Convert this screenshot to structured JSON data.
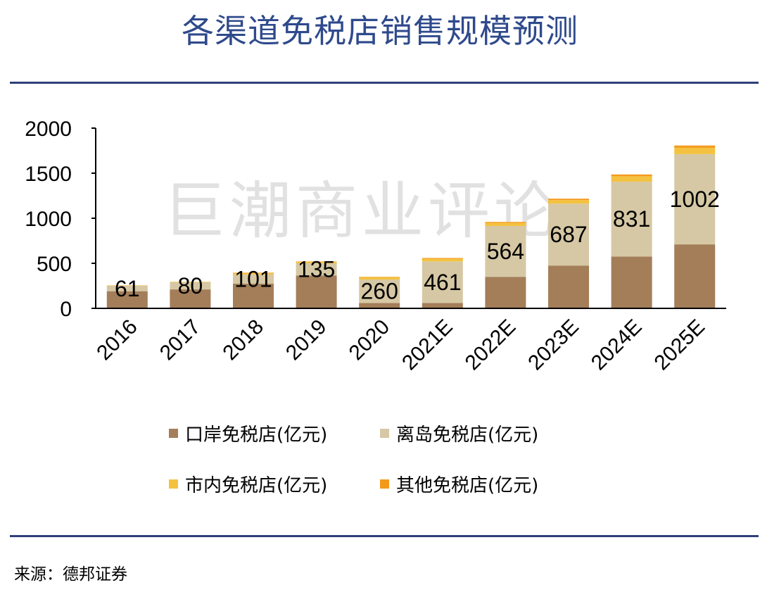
{
  "title": "各渠道免税店销售规模预测",
  "watermark": "巨潮商业评论",
  "source": "来源：德邦证券",
  "chart_data": {
    "type": "bar",
    "stacked": true,
    "categories": [
      "2016",
      "2017",
      "2018",
      "2019",
      "2020",
      "2021E",
      "2022E",
      "2023E",
      "2024E",
      "2025E"
    ],
    "ylim": [
      0,
      2000
    ],
    "yticks": [
      0,
      500,
      1000,
      1500,
      2000
    ],
    "grid": false,
    "legend_position": "bottom",
    "series": [
      {
        "name": "口岸免税店(亿元)",
        "color": "#a37e59",
        "values": [
          190,
          210,
          275,
          365,
          60,
          60,
          350,
          475,
          575,
          710
        ]
      },
      {
        "name": "离岛免税店(亿元)",
        "color": "#d6c8a4",
        "values": [
          61,
          80,
          101,
          135,
          260,
          461,
          564,
          687,
          831,
          1002
        ]
      },
      {
        "name": "市内免税店(亿元)",
        "color": "#f4c240",
        "values": [
          5,
          5,
          15,
          15,
          25,
          30,
          35,
          40,
          60,
          70
        ]
      },
      {
        "name": "其他免税店(亿元)",
        "color": "#f39a1c",
        "values": [
          0,
          0,
          5,
          5,
          5,
          8,
          10,
          15,
          20,
          25
        ]
      }
    ],
    "data_labels": {
      "series": "离岛免税店(亿元)",
      "values": [
        "61",
        "80",
        "101",
        "135",
        "260",
        "461",
        "564",
        "687",
        "831",
        "1002"
      ]
    }
  }
}
